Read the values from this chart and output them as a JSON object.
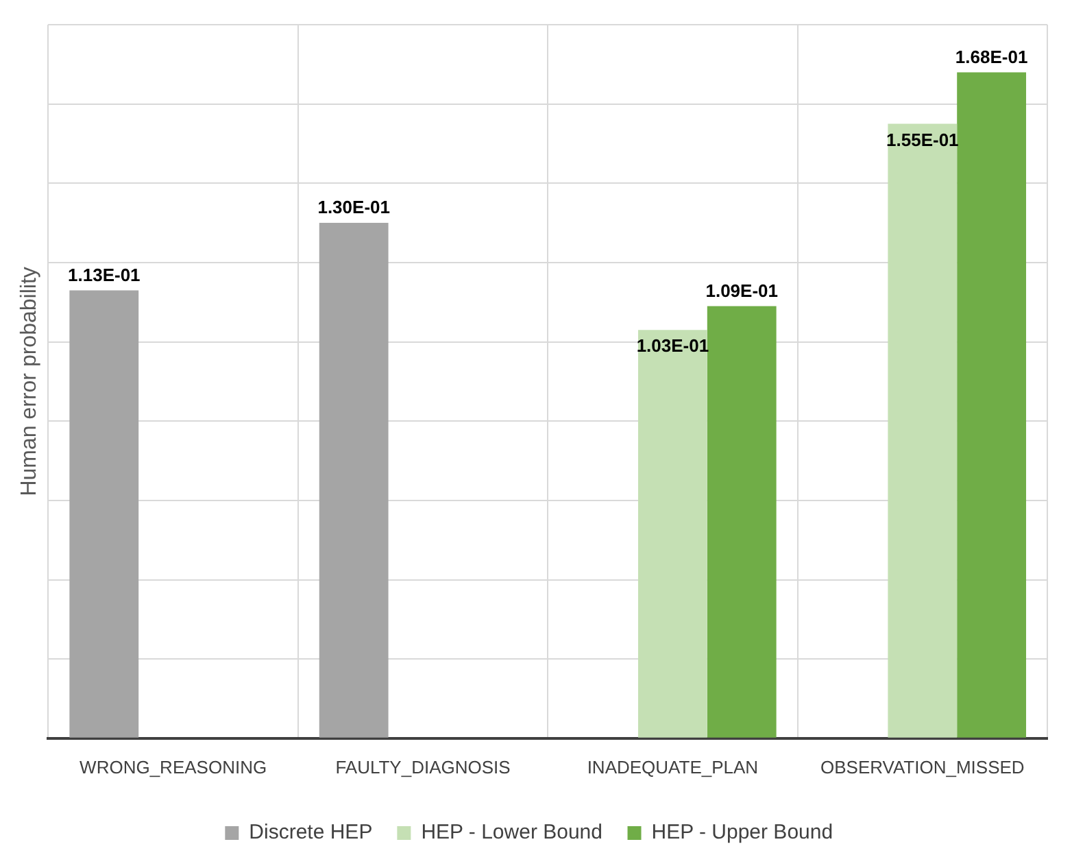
{
  "chart_data": {
    "type": "bar",
    "ylabel": "Human error probability",
    "categories": [
      "WRONG_REASONING",
      "FAULTY_DIAGNOSIS",
      "INADEQUATE_PLAN",
      "OBSERVATION_MISSED"
    ],
    "series": [
      {
        "name": "Discrete HEP",
        "color": "#a5a5a5",
        "values": [
          0.113,
          0.13,
          null,
          null
        ],
        "value_labels": [
          "1.13E-01",
          "1.30E-01",
          null,
          null
        ]
      },
      {
        "name": "HEP - Lower Bound",
        "color": "#c5e0b4",
        "values": [
          null,
          null,
          0.103,
          0.155
        ],
        "value_labels": [
          null,
          null,
          "1.03E-01",
          "1.55E-01"
        ]
      },
      {
        "name": "HEP - Upper Bound",
        "color": "#70ad47",
        "values": [
          null,
          null,
          0.109,
          0.168
        ],
        "value_labels": [
          null,
          null,
          "1.09E-01",
          "1.68E-01"
        ]
      }
    ],
    "ylim": [
      0,
      0.18
    ],
    "yticks": [
      {
        "value": 0,
        "label": null
      },
      {
        "value": 0.02,
        "label": null
      },
      {
        "value": 0.04,
        "label": null
      },
      {
        "value": 0.06,
        "label": null
      },
      {
        "value": 0.08,
        "label": null
      },
      {
        "value": 0.1,
        "label": null
      },
      {
        "value": 0.12,
        "label": null
      },
      {
        "value": 0.14,
        "label": null
      },
      {
        "value": 0.16,
        "label": null
      },
      {
        "value": 0.18,
        "label": null
      }
    ],
    "tick_labels": "x",
    "grid": true,
    "legend": "bottom"
  }
}
